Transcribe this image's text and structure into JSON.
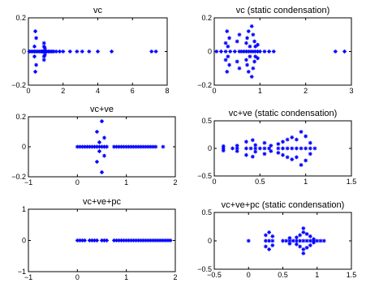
{
  "chart_data": [
    {
      "type": "scatter",
      "title": "vc",
      "xlim": [
        0,
        8
      ],
      "ylim": [
        -0.2,
        0.2
      ],
      "xticks": [
        0,
        2,
        4,
        6,
        8
      ],
      "xtick_labels": [
        "0",
        "2",
        "4",
        "6",
        "8"
      ],
      "yticks": [
        -0.2,
        0,
        0.2
      ],
      "ytick_labels": [
        "−0.2",
        "0",
        "0.2"
      ],
      "color": "#0000ff",
      "marker": "asterisk",
      "points": [
        [
          0.05,
          0
        ],
        [
          0.15,
          0
        ],
        [
          0.25,
          0
        ],
        [
          0.35,
          0
        ],
        [
          0.45,
          0
        ],
        [
          0.55,
          0
        ],
        [
          0.65,
          0
        ],
        [
          0.75,
          0
        ],
        [
          0.8,
          0
        ],
        [
          0.85,
          0
        ],
        [
          0.9,
          0
        ],
        [
          0.95,
          0
        ],
        [
          1.0,
          0
        ],
        [
          1.05,
          0
        ],
        [
          1.15,
          0
        ],
        [
          1.25,
          0
        ],
        [
          1.35,
          0
        ],
        [
          1.45,
          0
        ],
        [
          1.6,
          0
        ],
        [
          1.8,
          0
        ],
        [
          2.0,
          0
        ],
        [
          2.4,
          0
        ],
        [
          2.8,
          0
        ],
        [
          3.1,
          0
        ],
        [
          3.5,
          0
        ],
        [
          4.0,
          0
        ],
        [
          4.8,
          0
        ],
        [
          7.1,
          0
        ],
        [
          7.35,
          0
        ],
        [
          0.9,
          0.05
        ],
        [
          0.9,
          0.03
        ],
        [
          0.9,
          -0.03
        ],
        [
          0.9,
          -0.05
        ],
        [
          0.95,
          0.02
        ],
        [
          0.95,
          -0.02
        ],
        [
          0.45,
          0.08
        ],
        [
          0.4,
          0.12
        ],
        [
          0.45,
          -0.08
        ],
        [
          0.4,
          -0.12
        ],
        [
          0.35,
          0.03
        ],
        [
          0.35,
          -0.03
        ]
      ]
    },
    {
      "type": "scatter",
      "title": "vc (static condensation)",
      "xlim": [
        0,
        3
      ],
      "ylim": [
        -0.2,
        0.2
      ],
      "xticks": [
        0,
        1,
        2,
        3
      ],
      "xtick_labels": [
        "0",
        "1",
        "2",
        "3"
      ],
      "yticks": [
        -0.2,
        0,
        0.2
      ],
      "ytick_labels": [
        "−0.2",
        "0",
        "0.2"
      ],
      "color": "#0000ff",
      "marker": "asterisk",
      "points": [
        [
          0.05,
          0
        ],
        [
          0.15,
          0
        ],
        [
          0.25,
          0
        ],
        [
          0.35,
          0
        ],
        [
          0.45,
          0
        ],
        [
          0.55,
          0
        ],
        [
          0.6,
          0
        ],
        [
          0.65,
          0
        ],
        [
          0.7,
          0
        ],
        [
          0.75,
          0
        ],
        [
          0.8,
          0
        ],
        [
          0.85,
          0
        ],
        [
          0.9,
          0
        ],
        [
          0.95,
          0
        ],
        [
          1.0,
          0
        ],
        [
          1.1,
          0
        ],
        [
          1.2,
          0
        ],
        [
          1.3,
          0
        ],
        [
          2.65,
          0
        ],
        [
          2.85,
          0
        ],
        [
          0.28,
          0.12
        ],
        [
          0.33,
          0.08
        ],
        [
          0.25,
          0.05
        ],
        [
          0.3,
          0.03
        ],
        [
          0.28,
          -0.12
        ],
        [
          0.33,
          -0.08
        ],
        [
          0.25,
          -0.05
        ],
        [
          0.3,
          -0.03
        ],
        [
          0.5,
          0.06
        ],
        [
          0.55,
          0.1
        ],
        [
          0.5,
          -0.06
        ],
        [
          0.55,
          -0.1
        ],
        [
          0.7,
          0.05
        ],
        [
          0.72,
          0.08
        ],
        [
          0.7,
          -0.05
        ],
        [
          0.72,
          -0.08
        ],
        [
          0.75,
          0.12
        ],
        [
          0.75,
          -0.12
        ],
        [
          0.82,
          0.15
        ],
        [
          0.85,
          0.1
        ],
        [
          0.88,
          0.06
        ],
        [
          0.82,
          -0.15
        ],
        [
          0.85,
          -0.1
        ],
        [
          0.88,
          -0.06
        ],
        [
          0.9,
          0.03
        ],
        [
          0.9,
          -0.03
        ],
        [
          0.95,
          0.04
        ],
        [
          0.95,
          -0.04
        ],
        [
          0.78,
          0.03
        ],
        [
          0.78,
          -0.03
        ]
      ]
    },
    {
      "type": "scatter",
      "title": "vc+ve",
      "xlim": [
        -1,
        2
      ],
      "ylim": [
        -0.2,
        0.2
      ],
      "xticks": [
        -1,
        0,
        1,
        2
      ],
      "xtick_labels": [
        "−1",
        "0",
        "1",
        "2"
      ],
      "yticks": [
        -0.2,
        0,
        0.2
      ],
      "ytick_labels": [
        "−0.2",
        "0",
        "0.2"
      ],
      "color": "#0000ff",
      "marker": "asterisk",
      "points": [
        [
          0.0,
          0
        ],
        [
          0.05,
          0
        ],
        [
          0.1,
          0
        ],
        [
          0.15,
          0
        ],
        [
          0.2,
          0
        ],
        [
          0.25,
          0
        ],
        [
          0.3,
          0
        ],
        [
          0.35,
          0
        ],
        [
          0.4,
          0
        ],
        [
          0.45,
          0
        ],
        [
          0.5,
          0
        ],
        [
          0.55,
          0
        ],
        [
          0.6,
          0
        ],
        [
          0.75,
          0
        ],
        [
          0.8,
          0
        ],
        [
          0.85,
          0
        ],
        [
          0.9,
          0
        ],
        [
          0.95,
          0
        ],
        [
          1.0,
          0
        ],
        [
          1.05,
          0
        ],
        [
          1.1,
          0
        ],
        [
          1.15,
          0
        ],
        [
          1.2,
          0
        ],
        [
          1.25,
          0
        ],
        [
          1.3,
          0
        ],
        [
          1.35,
          0
        ],
        [
          1.4,
          0
        ],
        [
          1.45,
          0
        ],
        [
          1.5,
          0
        ],
        [
          1.55,
          0
        ],
        [
          1.6,
          0
        ],
        [
          1.75,
          0
        ],
        [
          0.5,
          0.17
        ],
        [
          0.5,
          -0.17
        ],
        [
          0.4,
          0.1
        ],
        [
          0.4,
          -0.1
        ],
        [
          0.55,
          0.06
        ],
        [
          0.55,
          -0.06
        ],
        [
          0.45,
          0.03
        ],
        [
          0.45,
          -0.03
        ]
      ]
    },
    {
      "type": "scatter",
      "title": "vc+ve (static condensation)",
      "xlim": [
        0,
        1.5
      ],
      "ylim": [
        -0.5,
        0.5
      ],
      "xticks": [
        0,
        0.5,
        1,
        1.5
      ],
      "xtick_labels": [
        "0",
        "0.5",
        "1",
        "1.5"
      ],
      "yticks": [
        -0.5,
        0,
        0.5
      ],
      "ytick_labels": [
        "−0.5",
        "0",
        "0.5"
      ],
      "color": "#0000ff",
      "marker": "asterisk",
      "points": [
        [
          0.1,
          0
        ],
        [
          0.2,
          0
        ],
        [
          0.25,
          0
        ],
        [
          0.35,
          0
        ],
        [
          0.4,
          0
        ],
        [
          0.45,
          0
        ],
        [
          0.5,
          0
        ],
        [
          0.55,
          0
        ],
        [
          0.6,
          0
        ],
        [
          0.7,
          0
        ],
        [
          0.75,
          0
        ],
        [
          0.8,
          0
        ],
        [
          0.85,
          0
        ],
        [
          0.9,
          0
        ],
        [
          0.95,
          0
        ],
        [
          1.0,
          0
        ],
        [
          1.05,
          0
        ],
        [
          1.1,
          0
        ],
        [
          0.1,
          0.04
        ],
        [
          0.1,
          -0.04
        ],
        [
          0.25,
          0.05
        ],
        [
          0.25,
          -0.05
        ],
        [
          0.35,
          0.12
        ],
        [
          0.35,
          -0.12
        ],
        [
          0.42,
          0.15
        ],
        [
          0.42,
          -0.15
        ],
        [
          0.45,
          0.06
        ],
        [
          0.45,
          -0.06
        ],
        [
          0.55,
          0.1
        ],
        [
          0.55,
          -0.1
        ],
        [
          0.62,
          0.05
        ],
        [
          0.62,
          -0.05
        ],
        [
          0.7,
          0.08
        ],
        [
          0.7,
          -0.08
        ],
        [
          0.75,
          0.12
        ],
        [
          0.75,
          -0.12
        ],
        [
          0.8,
          0.16
        ],
        [
          0.8,
          -0.16
        ],
        [
          0.85,
          0.2
        ],
        [
          0.85,
          -0.2
        ],
        [
          0.9,
          0.16
        ],
        [
          0.9,
          -0.16
        ],
        [
          0.95,
          0.3
        ],
        [
          0.95,
          -0.3
        ],
        [
          1.0,
          0.22
        ],
        [
          1.0,
          -0.22
        ],
        [
          1.05,
          0.1
        ],
        [
          1.05,
          -0.1
        ]
      ]
    },
    {
      "type": "scatter",
      "title": "vc+ve+pc",
      "xlim": [
        -1,
        2
      ],
      "ylim": [
        -1,
        1
      ],
      "xticks": [
        -1,
        0,
        1,
        2
      ],
      "xtick_labels": [
        "−1",
        "0",
        "1",
        "2"
      ],
      "yticks": [
        -1,
        0,
        1
      ],
      "ytick_labels": [
        "−1",
        "0",
        "1"
      ],
      "color": "#0000ff",
      "marker": "asterisk",
      "points": [
        [
          0.0,
          0
        ],
        [
          0.05,
          0
        ],
        [
          0.1,
          0
        ],
        [
          0.15,
          0
        ],
        [
          0.25,
          0
        ],
        [
          0.3,
          0
        ],
        [
          0.35,
          0
        ],
        [
          0.4,
          0
        ],
        [
          0.5,
          0
        ],
        [
          0.55,
          0
        ],
        [
          0.6,
          0
        ],
        [
          0.75,
          0
        ],
        [
          0.8,
          0
        ],
        [
          0.85,
          0
        ],
        [
          0.9,
          0
        ],
        [
          0.95,
          0
        ],
        [
          1.0,
          0
        ],
        [
          1.05,
          0
        ],
        [
          1.1,
          0
        ],
        [
          1.15,
          0
        ],
        [
          1.2,
          0
        ],
        [
          1.25,
          0
        ],
        [
          1.3,
          0
        ],
        [
          1.35,
          0
        ],
        [
          1.4,
          0
        ],
        [
          1.45,
          0
        ],
        [
          1.5,
          0
        ],
        [
          1.55,
          0
        ],
        [
          1.6,
          0
        ],
        [
          1.65,
          0
        ],
        [
          1.7,
          0
        ],
        [
          1.75,
          0
        ],
        [
          1.8,
          0
        ],
        [
          1.85,
          0
        ],
        [
          1.9,
          0
        ]
      ]
    },
    {
      "type": "scatter",
      "title": "vc+ve+pc (static condensation)",
      "xlim": [
        -0.5,
        1.5
      ],
      "ylim": [
        -0.5,
        0.5
      ],
      "xticks": [
        -0.5,
        0,
        0.5,
        1,
        1.5
      ],
      "xtick_labels": [
        "−0.5",
        "0",
        "0.5",
        "1",
        "1.5"
      ],
      "yticks": [
        -0.5,
        0,
        0.5
      ],
      "ytick_labels": [
        "−0.5",
        "0",
        "0.5"
      ],
      "color": "#0000ff",
      "marker": "asterisk",
      "points": [
        [
          0.0,
          0
        ],
        [
          0.25,
          0
        ],
        [
          0.3,
          0
        ],
        [
          0.35,
          0
        ],
        [
          0.5,
          0
        ],
        [
          0.55,
          0
        ],
        [
          0.6,
          0
        ],
        [
          0.65,
          0
        ],
        [
          0.7,
          0
        ],
        [
          0.75,
          0
        ],
        [
          0.8,
          0
        ],
        [
          0.85,
          0
        ],
        [
          0.9,
          0
        ],
        [
          0.95,
          0
        ],
        [
          1.0,
          0
        ],
        [
          1.05,
          0
        ],
        [
          1.1,
          0
        ],
        [
          0.25,
          0.1
        ],
        [
          0.25,
          -0.1
        ],
        [
          0.3,
          0.15
        ],
        [
          0.3,
          -0.15
        ],
        [
          0.35,
          0.08
        ],
        [
          0.35,
          -0.08
        ],
        [
          0.6,
          0.05
        ],
        [
          0.6,
          -0.05
        ],
        [
          0.7,
          0.06
        ],
        [
          0.7,
          -0.06
        ],
        [
          0.75,
          0.1
        ],
        [
          0.75,
          -0.1
        ],
        [
          0.8,
          0.15
        ],
        [
          0.8,
          -0.15
        ],
        [
          0.85,
          0.12
        ],
        [
          0.85,
          -0.12
        ],
        [
          0.9,
          0.08
        ],
        [
          0.9,
          -0.08
        ],
        [
          0.8,
          0.22
        ],
        [
          0.8,
          -0.22
        ],
        [
          0.95,
          0.03
        ],
        [
          0.95,
          -0.03
        ]
      ]
    }
  ]
}
